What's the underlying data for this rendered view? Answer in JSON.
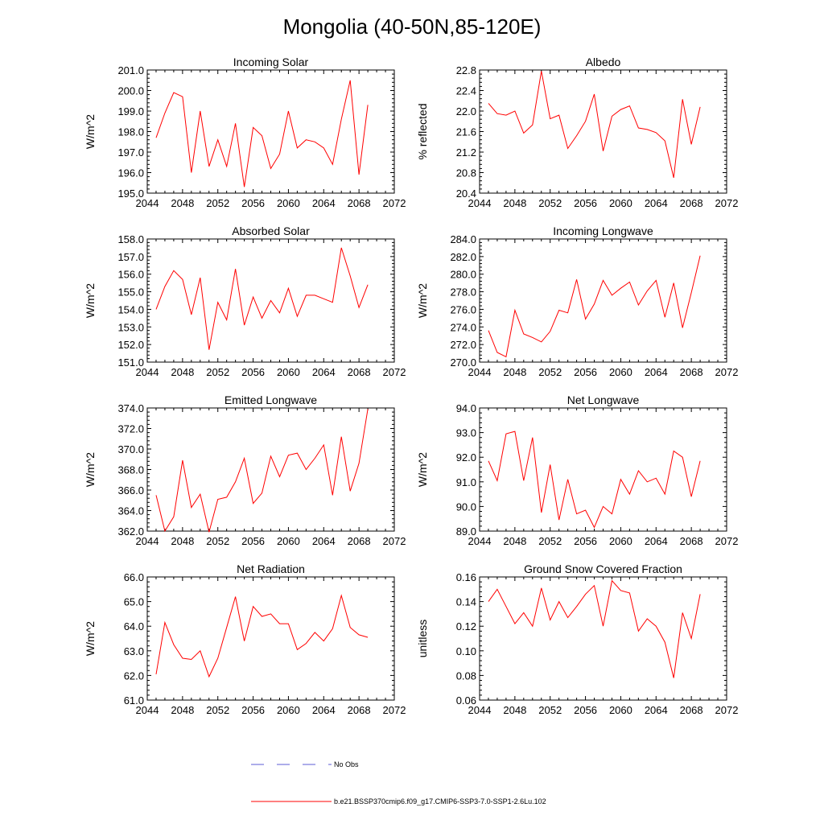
{
  "title": "Mongolia (40-50N,85-120E)",
  "legend": {
    "entries": [
      {
        "label": "No Obs",
        "color": "#5b5bd6",
        "dash": true
      },
      {
        "label": "b.e21.BSSP370cmip6.f09_g17.CMIP6-SSP3-7.0-SSP1-2.6Lu.102",
        "color": "#ff0000",
        "dash": false
      }
    ]
  },
  "colors": {
    "series": "#ff0000"
  },
  "chart_data": [
    {
      "type": "line",
      "title": "Incoming Solar",
      "ylabel": "W/m^2",
      "xlim": [
        2044,
        2072
      ],
      "ylim": [
        195.0,
        201.0
      ],
      "xticks": [
        2044,
        2048,
        2052,
        2056,
        2060,
        2064,
        2068,
        2072
      ],
      "yticks": [
        "195.0",
        "196.0",
        "197.0",
        "198.0",
        "199.0",
        "200.0",
        "201.0"
      ],
      "x": [
        2045,
        2046,
        2047,
        2048,
        2049,
        2050,
        2051,
        2052,
        2053,
        2054,
        2055,
        2056,
        2057,
        2058,
        2059,
        2060,
        2061,
        2062,
        2063,
        2064,
        2065,
        2066,
        2067,
        2068,
        2069
      ],
      "y": [
        197.7,
        198.9,
        199.9,
        199.7,
        196.0,
        199.0,
        196.3,
        197.6,
        196.3,
        198.4,
        195.3,
        198.2,
        197.8,
        196.2,
        196.9,
        199.0,
        197.2,
        197.6,
        197.5,
        197.2,
        196.4,
        198.6,
        200.5,
        195.9,
        199.3
      ]
    },
    {
      "type": "line",
      "title": "Albedo",
      "ylabel": "% reflected",
      "xlim": [
        2044,
        2072
      ],
      "ylim": [
        20.4,
        22.8
      ],
      "xticks": [
        2044,
        2048,
        2052,
        2056,
        2060,
        2064,
        2068,
        2072
      ],
      "yticks": [
        "20.4",
        "20.8",
        "21.2",
        "21.6",
        "22.0",
        "22.4",
        "22.8"
      ],
      "x": [
        2045,
        2046,
        2047,
        2048,
        2049,
        2050,
        2051,
        2052,
        2053,
        2054,
        2055,
        2056,
        2057,
        2058,
        2059,
        2060,
        2061,
        2062,
        2063,
        2064,
        2065,
        2066,
        2067,
        2068,
        2069
      ],
      "y": [
        22.15,
        21.95,
        21.92,
        22.0,
        21.57,
        21.73,
        22.78,
        21.85,
        21.92,
        21.27,
        21.52,
        21.8,
        22.33,
        21.22,
        21.9,
        22.03,
        22.1,
        21.67,
        21.64,
        21.58,
        21.42,
        20.7,
        22.23,
        21.35,
        22.08
      ]
    },
    {
      "type": "line",
      "title": "Absorbed Solar",
      "ylabel": "W/m^2",
      "xlim": [
        2044,
        2072
      ],
      "ylim": [
        151.0,
        158.0
      ],
      "xticks": [
        2044,
        2048,
        2052,
        2056,
        2060,
        2064,
        2068,
        2072
      ],
      "yticks": [
        "151.0",
        "152.0",
        "153.0",
        "154.0",
        "155.0",
        "156.0",
        "157.0",
        "158.0"
      ],
      "x": [
        2045,
        2046,
        2047,
        2048,
        2049,
        2050,
        2051,
        2052,
        2053,
        2054,
        2055,
        2056,
        2057,
        2058,
        2059,
        2060,
        2061,
        2062,
        2063,
        2064,
        2065,
        2066,
        2067,
        2068,
        2069
      ],
      "y": [
        154.0,
        155.3,
        156.2,
        155.7,
        153.7,
        155.8,
        151.7,
        154.4,
        153.4,
        156.3,
        153.1,
        154.7,
        153.5,
        154.5,
        153.8,
        155.2,
        153.6,
        154.8,
        154.8,
        154.6,
        154.4,
        157.5,
        155.9,
        154.1,
        155.4
      ]
    },
    {
      "type": "line",
      "title": "Incoming Longwave",
      "ylabel": "W/m^2",
      "xlim": [
        2044,
        2072
      ],
      "ylim": [
        270.0,
        284.0
      ],
      "xticks": [
        2044,
        2048,
        2052,
        2056,
        2060,
        2064,
        2068,
        2072
      ],
      "yticks": [
        "270.0",
        "272.0",
        "274.0",
        "276.0",
        "278.0",
        "280.0",
        "282.0",
        "284.0"
      ],
      "x": [
        2045,
        2046,
        2047,
        2048,
        2049,
        2050,
        2051,
        2052,
        2053,
        2054,
        2055,
        2056,
        2057,
        2058,
        2059,
        2060,
        2061,
        2062,
        2063,
        2064,
        2065,
        2066,
        2067,
        2068,
        2069
      ],
      "y": [
        273.6,
        271.1,
        270.6,
        275.9,
        273.2,
        272.8,
        272.3,
        273.5,
        275.9,
        275.6,
        279.4,
        274.9,
        276.6,
        279.3,
        277.6,
        278.4,
        279.1,
        276.5,
        278.1,
        279.3,
        275.1,
        279.0,
        273.9,
        277.9,
        282.1
      ]
    },
    {
      "type": "line",
      "title": "Emitted Longwave",
      "ylabel": "W/m^2",
      "xlim": [
        2044,
        2072
      ],
      "ylim": [
        362.0,
        374.0
      ],
      "xticks": [
        2044,
        2048,
        2052,
        2056,
        2060,
        2064,
        2068,
        2072
      ],
      "yticks": [
        "362.0",
        "364.0",
        "366.0",
        "368.0",
        "370.0",
        "372.0",
        "374.0"
      ],
      "x": [
        2045,
        2046,
        2047,
        2048,
        2049,
        2050,
        2051,
        2052,
        2053,
        2054,
        2055,
        2056,
        2057,
        2058,
        2059,
        2060,
        2061,
        2062,
        2063,
        2064,
        2065,
        2066,
        2067,
        2068,
        2069
      ],
      "y": [
        365.5,
        362.0,
        363.4,
        368.9,
        364.3,
        365.6,
        361.9,
        365.1,
        365.3,
        366.8,
        369.1,
        364.7,
        365.7,
        369.3,
        367.3,
        369.4,
        369.6,
        368.0,
        369.1,
        370.4,
        365.5,
        371.2,
        365.9,
        368.6,
        373.9
      ]
    },
    {
      "type": "line",
      "title": "Net Longwave",
      "ylabel": "W/m^2",
      "xlim": [
        2044,
        2072
      ],
      "ylim": [
        89.0,
        94.0
      ],
      "xticks": [
        2044,
        2048,
        2052,
        2056,
        2060,
        2064,
        2068,
        2072
      ],
      "yticks": [
        "89.0",
        "90.0",
        "91.0",
        "92.0",
        "93.0",
        "94.0"
      ],
      "x": [
        2045,
        2046,
        2047,
        2048,
        2049,
        2050,
        2051,
        2052,
        2053,
        2054,
        2055,
        2056,
        2057,
        2058,
        2059,
        2060,
        2061,
        2062,
        2063,
        2064,
        2065,
        2066,
        2067,
        2068,
        2069
      ],
      "y": [
        91.85,
        91.05,
        92.95,
        93.05,
        91.05,
        92.8,
        89.75,
        91.7,
        89.45,
        91.1,
        89.7,
        89.85,
        89.15,
        90.0,
        89.7,
        91.1,
        90.5,
        91.45,
        91.0,
        91.15,
        90.5,
        92.25,
        92.0,
        90.4,
        91.85
      ]
    },
    {
      "type": "line",
      "title": "Net Radiation",
      "ylabel": "W/m^2",
      "xlim": [
        2044,
        2072
      ],
      "ylim": [
        61.0,
        66.0
      ],
      "xticks": [
        2044,
        2048,
        2052,
        2056,
        2060,
        2064,
        2068,
        2072
      ],
      "yticks": [
        "61.0",
        "62.0",
        "63.0",
        "64.0",
        "65.0",
        "66.0"
      ],
      "x": [
        2045,
        2046,
        2047,
        2048,
        2049,
        2050,
        2051,
        2052,
        2053,
        2054,
        2055,
        2056,
        2057,
        2058,
        2059,
        2060,
        2061,
        2062,
        2063,
        2064,
        2065,
        2066,
        2067,
        2068,
        2069
      ],
      "y": [
        62.05,
        64.15,
        63.25,
        62.7,
        62.65,
        63.0,
        61.95,
        62.7,
        63.95,
        65.2,
        63.4,
        64.8,
        64.4,
        64.5,
        64.1,
        64.1,
        63.05,
        63.3,
        63.75,
        63.4,
        63.9,
        65.25,
        63.95,
        63.65,
        63.55
      ]
    },
    {
      "type": "line",
      "title": "Ground Snow Covered Fraction",
      "ylabel": "unitless",
      "xlim": [
        2044,
        2072
      ],
      "ylim": [
        0.06,
        0.16
      ],
      "xticks": [
        2044,
        2048,
        2052,
        2056,
        2060,
        2064,
        2068,
        2072
      ],
      "yticks": [
        "0.06",
        "0.08",
        "0.10",
        "0.12",
        "0.14",
        "0.16"
      ],
      "x": [
        2045,
        2046,
        2047,
        2048,
        2049,
        2050,
        2051,
        2052,
        2053,
        2054,
        2055,
        2056,
        2057,
        2058,
        2059,
        2060,
        2061,
        2062,
        2063,
        2064,
        2065,
        2066,
        2067,
        2068,
        2069
      ],
      "y": [
        0.14,
        0.15,
        0.136,
        0.122,
        0.131,
        0.12,
        0.151,
        0.125,
        0.14,
        0.127,
        0.136,
        0.146,
        0.153,
        0.12,
        0.157,
        0.149,
        0.147,
        0.116,
        0.126,
        0.12,
        0.107,
        0.078,
        0.131,
        0.11,
        0.146
      ]
    }
  ]
}
